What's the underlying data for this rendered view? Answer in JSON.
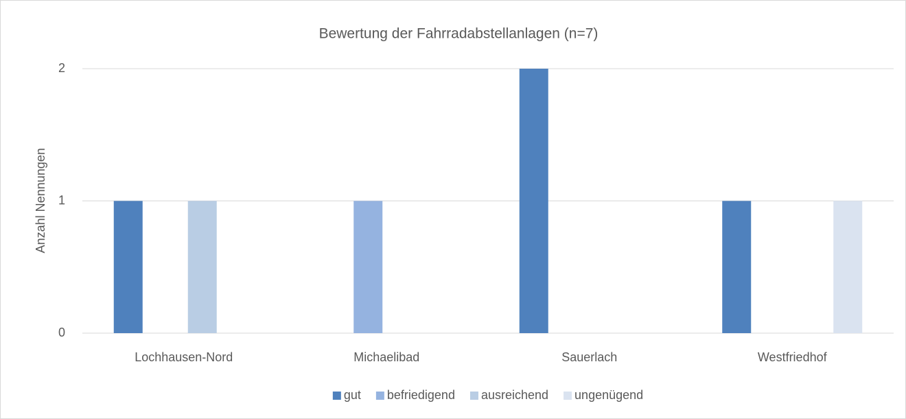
{
  "chart_data": {
    "type": "bar",
    "title": "Bewertung der Fahrradabstellanlagen (n=7)",
    "y_label": "Anzahl Nennungen",
    "categories": [
      "Lochhausen-Nord",
      "Michaelibad",
      "Sauerlach",
      "Westfriedhof"
    ],
    "series": [
      {
        "name": "gut",
        "color": "#4f81bd",
        "values": [
          1,
          0,
          2,
          1
        ]
      },
      {
        "name": "befriedigend",
        "color": "#95b3e0",
        "values": [
          0,
          1,
          0,
          0
        ]
      },
      {
        "name": "ausreichend",
        "color": "#b9cde4",
        "values": [
          1,
          0,
          0,
          0
        ]
      },
      {
        "name": "ungenügend",
        "color": "#dae3f0",
        "values": [
          0,
          0,
          0,
          1
        ]
      }
    ],
    "ylim": [
      0,
      2
    ],
    "yticks": [
      0,
      1,
      2
    ],
    "grid": true,
    "legend": "bottom"
  }
}
